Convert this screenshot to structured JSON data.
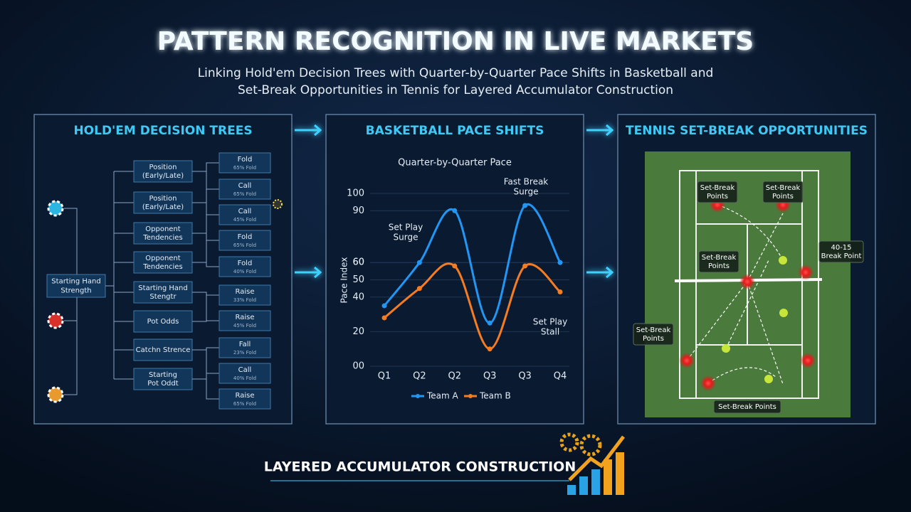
{
  "header": {
    "title": "PATTERN RECOGNITION IN LIVE MARKETS",
    "subtitle": [
      "Linking Hold'em Decision Trees with Quarter-by-Quarter Pace Shifts in Basketball and",
      "Set-Break Opportunities in Tennis for Layered Accumulator Construction"
    ]
  },
  "holdem": {
    "title": "HOLD'EM DECISION TREES",
    "root": [
      "Starting Hand",
      "Strength"
    ],
    "nodes": [
      [
        "Position",
        "(Early/Late)"
      ],
      [
        "Position",
        "(Early/Late)"
      ],
      [
        "Opponent",
        "Tendencies"
      ],
      [
        "Opponent",
        "Tendencies"
      ],
      [
        "Starting Hand",
        "Stengtr"
      ],
      [
        "Pot Odds"
      ],
      [
        "Catchn Strence"
      ],
      [
        "Starting",
        "Pot Oddt"
      ]
    ],
    "leaves": [
      {
        "action": "Fold",
        "odds": "65% Fold"
      },
      {
        "action": "Call",
        "odds": "65% Fold"
      },
      {
        "action": "Call",
        "odds": "45% Fold"
      },
      {
        "action": "Fold",
        "odds": "65% Fold"
      },
      {
        "action": "Fold",
        "odds": "40% Fold"
      },
      {
        "action": "Raise",
        "odds": "33% Fold"
      },
      {
        "action": "Raise",
        "odds": "45% Fold"
      },
      {
        "action": "Fall",
        "odds": "23% Fold"
      },
      {
        "action": "Call",
        "odds": "40% Fold"
      },
      {
        "action": "Raise",
        "odds": "65% Fold"
      }
    ]
  },
  "basketball": {
    "title": "BASKETBALL PACE SHIFTS"
  },
  "chart_data": {
    "type": "line",
    "title": "Quarter-by-Quarter Pace",
    "y_label": "Pace Index",
    "categories": [
      "Q1",
      "Q2",
      "Q2",
      "Q3",
      "Q3",
      "Q4"
    ],
    "series": [
      {
        "name": "Team A",
        "color": "#2196f3",
        "values": [
          35,
          60,
          90,
          25,
          93,
          60
        ]
      },
      {
        "name": "Team B",
        "color": "#f57c20",
        "values": [
          28,
          45,
          58,
          10,
          58,
          43
        ]
      }
    ],
    "ylim": [
      0,
      100
    ],
    "yticks": [
      100,
      90,
      60,
      60,
      50,
      40,
      20,
      {
        "value": 0,
        "label": "00"
      }
    ],
    "annotations": [
      [
        "Set Play",
        "Surge"
      ],
      [
        "Fast Break",
        "Surge"
      ],
      [
        "Set Play",
        "Stall"
      ]
    ]
  },
  "tennis": {
    "title": "TENNIS SET-BREAK OPPORTUNITIES",
    "labels": [
      [
        "Set-Break",
        "Points"
      ],
      [
        "Set-Break",
        "Points"
      ],
      [
        "Set-Break",
        "Points"
      ],
      [
        "40-15",
        "Break Point"
      ],
      [
        "Set-Break",
        "Points"
      ],
      [
        "Set-Break Points"
      ]
    ]
  },
  "footer": {
    "title": "LAYERED ACCUMULATOR CONSTRUCTION"
  }
}
